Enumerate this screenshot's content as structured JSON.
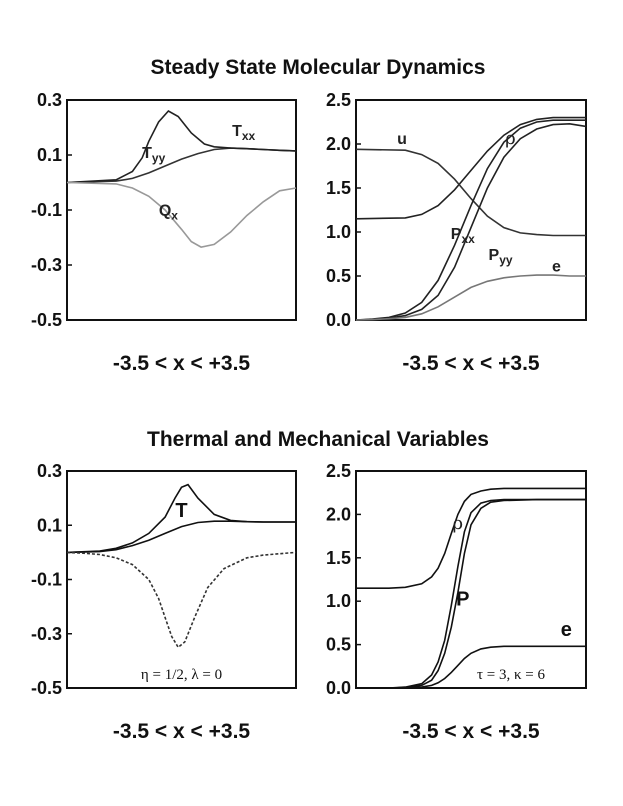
{
  "titles": {
    "top": "Steady State Molecular Dynamics",
    "bottom": "Thermal and Mechanical Variables"
  },
  "chart_data": [
    {
      "type": "line",
      "xlabel": "-3.5 < x < +3.5",
      "xlim": [
        -3.5,
        3.5
      ],
      "ylim": [
        -0.5,
        0.3
      ],
      "yticks": [
        "0.3",
        "0.1",
        "-0.1",
        "-0.3",
        "-0.5"
      ],
      "series": [
        {
          "name": "Txx",
          "color": "#333333",
          "x": [
            -3.5,
            -2,
            -1.5,
            -1,
            -0.5,
            0,
            0.5,
            1,
            1.5,
            2,
            2.5,
            3,
            3.5
          ],
          "y": [
            0,
            0.005,
            0.015,
            0.035,
            0.06,
            0.085,
            0.105,
            0.12,
            0.125,
            0.123,
            0.12,
            0.117,
            0.115
          ]
        },
        {
          "name": "Tyy",
          "color": "#222222",
          "x": [
            -3.5,
            -2,
            -1.5,
            -1.2,
            -1,
            -0.7,
            -0.4,
            -0.1,
            0.3,
            0.7,
            1,
            1.5,
            2,
            2.5,
            3,
            3.5
          ],
          "y": [
            0,
            0.01,
            0.04,
            0.09,
            0.15,
            0.22,
            0.26,
            0.24,
            0.18,
            0.14,
            0.13,
            0.125,
            0.123,
            0.12,
            0.117,
            0.115
          ]
        },
        {
          "name": "Qx",
          "color": "#999999",
          "x": [
            -3.5,
            -2,
            -1.5,
            -1,
            -0.5,
            0,
            0.3,
            0.6,
            1,
            1.5,
            2,
            2.5,
            3,
            3.5
          ],
          "y": [
            0,
            -0.005,
            -0.02,
            -0.05,
            -0.1,
            -0.17,
            -0.215,
            -0.235,
            -0.225,
            -0.18,
            -0.12,
            -0.07,
            -0.03,
            -0.02
          ]
        }
      ],
      "labels": [
        {
          "text": "Txx",
          "x": 1.9,
          "y": 0.17
        },
        {
          "text": "Tyy",
          "x": -0.85,
          "y": 0.09
        },
        {
          "text": "Qx",
          "x": -0.4,
          "y": -0.12
        }
      ]
    },
    {
      "type": "line",
      "xlabel": "-3.5 < x < +3.5",
      "xlim": [
        -3.5,
        3.5
      ],
      "ylim": [
        0,
        2.5
      ],
      "yticks": [
        "2.5",
        "2.0",
        "1.5",
        "1.0",
        "0.5",
        "0.0"
      ],
      "series": [
        {
          "name": "ρ",
          "color": "#222222",
          "x": [
            -3.5,
            -2,
            -1.5,
            -1,
            -0.5,
            0,
            0.5,
            1,
            1.5,
            2,
            2.5,
            3,
            3.5
          ],
          "y": [
            1.15,
            1.16,
            1.2,
            1.3,
            1.48,
            1.7,
            1.92,
            2.1,
            2.22,
            2.28,
            2.3,
            2.3,
            2.3
          ]
        },
        {
          "name": "u",
          "color": "#333333",
          "x": [
            -3.5,
            -2,
            -1.5,
            -1,
            -0.5,
            0,
            0.5,
            1,
            1.5,
            2,
            2.5,
            3,
            3.5
          ],
          "y": [
            1.94,
            1.93,
            1.88,
            1.78,
            1.6,
            1.38,
            1.18,
            1.05,
            0.99,
            0.97,
            0.96,
            0.96,
            0.96
          ]
        },
        {
          "name": "Pxx",
          "color": "#222222",
          "x": [
            -3.5,
            -3,
            -2.5,
            -2,
            -1.5,
            -1,
            -0.5,
            0,
            0.5,
            1,
            1.5,
            2,
            2.5,
            3,
            3.5
          ],
          "y": [
            0,
            0.01,
            0.03,
            0.08,
            0.2,
            0.45,
            0.85,
            1.3,
            1.72,
            2.02,
            2.18,
            2.25,
            2.27,
            2.27,
            2.27
          ]
        },
        {
          "name": "Pyy",
          "color": "#222222",
          "x": [
            -3.5,
            -3,
            -2.5,
            -2,
            -1.5,
            -1,
            -0.5,
            0,
            0.5,
            1,
            1.5,
            2,
            2.5,
            3,
            3.5
          ],
          "y": [
            0,
            0.005,
            0.02,
            0.05,
            0.12,
            0.28,
            0.6,
            1.05,
            1.5,
            1.85,
            2.06,
            2.17,
            2.22,
            2.23,
            2.2
          ]
        },
        {
          "name": "e",
          "color": "#777777",
          "x": [
            -3.5,
            -3,
            -2.5,
            -2,
            -1.5,
            -1,
            -0.5,
            0,
            0.5,
            1,
            1.5,
            2,
            2.5,
            3,
            3.5
          ],
          "y": [
            0,
            0.005,
            0.015,
            0.03,
            0.07,
            0.15,
            0.26,
            0.37,
            0.44,
            0.48,
            0.5,
            0.51,
            0.51,
            0.5,
            0.5
          ]
        }
      ],
      "labels": [
        {
          "text": "u",
          "x": -2.1,
          "y": 2.0
        },
        {
          "text": "ρ",
          "x": 1.2,
          "y": 2.0
        },
        {
          "text": "Pxx",
          "x": -0.25,
          "y": 0.92
        },
        {
          "text": "Pyy",
          "x": 0.9,
          "y": 0.68
        },
        {
          "text": "e",
          "x": 2.6,
          "y": 0.55
        }
      ]
    },
    {
      "type": "line",
      "xlabel": "-3.5 < x < +3.5",
      "xlim": [
        -3.5,
        3.5
      ],
      "ylim": [
        -0.5,
        0.3
      ],
      "yticks": [
        "0.3",
        "0.1",
        "-0.1",
        "-0.3",
        "-0.5"
      ],
      "annotation": "η = 1/2, λ = 0",
      "series": [
        {
          "name": "T",
          "color": "#111111",
          "x": [
            -3.5,
            -2.5,
            -2,
            -1.5,
            -1,
            -0.5,
            -0.2,
            0,
            0.2,
            0.5,
            1,
            1.5,
            2,
            2.5,
            3,
            3.5
          ],
          "y": [
            0,
            0.005,
            0.015,
            0.035,
            0.07,
            0.13,
            0.2,
            0.24,
            0.25,
            0.2,
            0.14,
            0.118,
            0.113,
            0.112,
            0.112,
            0.112
          ]
        },
        {
          "name": "",
          "color": "#111111",
          "x": [
            -3.5,
            -2.5,
            -2,
            -1.5,
            -1,
            -0.5,
            0,
            0.5,
            1,
            1.5,
            2,
            2.5,
            3,
            3.5
          ],
          "y": [
            0,
            0.003,
            0.01,
            0.025,
            0.045,
            0.07,
            0.095,
            0.11,
            0.115,
            0.115,
            0.113,
            0.112,
            0.112,
            0.112
          ]
        },
        {
          "name": "",
          "color": "#333333",
          "dashed": true,
          "x": [
            -3.5,
            -3,
            -2.5,
            -2,
            -1.5,
            -1,
            -0.7,
            -0.5,
            -0.3,
            -0.1,
            0.1,
            0.4,
            0.8,
            1.3,
            2,
            2.5,
            3,
            3.5
          ],
          "y": [
            0,
            -0.003,
            -0.008,
            -0.02,
            -0.045,
            -0.1,
            -0.17,
            -0.24,
            -0.31,
            -0.35,
            -0.33,
            -0.24,
            -0.13,
            -0.06,
            -0.02,
            -0.01,
            -0.005,
            0
          ]
        }
      ],
      "labels": [
        {
          "text": "T",
          "x": 0.0,
          "y": 0.13
        }
      ]
    },
    {
      "type": "line",
      "xlabel": "-3.5 < x < +3.5",
      "xlim": [
        -3.5,
        3.5
      ],
      "ylim": [
        0,
        2.5
      ],
      "yticks": [
        "2.5",
        "2.0",
        "1.5",
        "1.0",
        "0.5",
        "0.0"
      ],
      "annotation": "τ = 3, κ = 6",
      "series": [
        {
          "name": "ρ",
          "color": "#111111",
          "x": [
            -3.5,
            -2.5,
            -2,
            -1.5,
            -1.2,
            -1,
            -0.8,
            -0.6,
            -0.4,
            -0.2,
            0,
            0.3,
            0.6,
            1,
            2,
            3.5
          ],
          "y": [
            1.15,
            1.15,
            1.16,
            1.2,
            1.28,
            1.38,
            1.55,
            1.78,
            2.0,
            2.15,
            2.23,
            2.27,
            2.29,
            2.3,
            2.3,
            2.3
          ]
        },
        {
          "name": "P",
          "color": "#111111",
          "x": [
            -3.5,
            -2.5,
            -2,
            -1.5,
            -1.2,
            -1,
            -0.8,
            -0.6,
            -0.4,
            -0.2,
            0,
            0.3,
            0.6,
            1,
            2,
            3.5
          ],
          "y": [
            0,
            0,
            0.01,
            0.05,
            0.15,
            0.3,
            0.55,
            0.95,
            1.4,
            1.8,
            2.02,
            2.13,
            2.16,
            2.17,
            2.17,
            2.17
          ]
        },
        {
          "name": "",
          "color": "#111111",
          "x": [
            -3.5,
            -2.5,
            -2,
            -1.5,
            -1.2,
            -1,
            -0.8,
            -0.6,
            -0.4,
            -0.2,
            0,
            0.3,
            0.6,
            1,
            2,
            3.5
          ],
          "y": [
            0,
            0,
            0.005,
            0.03,
            0.09,
            0.2,
            0.4,
            0.7,
            1.1,
            1.55,
            1.88,
            2.07,
            2.14,
            2.16,
            2.17,
            2.17
          ]
        },
        {
          "name": "e",
          "color": "#111111",
          "x": [
            -3.5,
            -2.5,
            -2,
            -1.5,
            -1.2,
            -1,
            -0.8,
            -0.6,
            -0.4,
            -0.2,
            0,
            0.3,
            0.6,
            1,
            2,
            3.5
          ],
          "y": [
            0,
            0,
            0.005,
            0.01,
            0.03,
            0.06,
            0.11,
            0.18,
            0.26,
            0.34,
            0.4,
            0.45,
            0.47,
            0.48,
            0.48,
            0.48
          ]
        }
      ],
      "labels": [
        {
          "text": "ρ",
          "x": -0.4,
          "y": 1.83
        },
        {
          "text": "P",
          "x": -0.25,
          "y": 0.95
        },
        {
          "text": "e",
          "x": 2.9,
          "y": 0.6
        }
      ]
    }
  ]
}
